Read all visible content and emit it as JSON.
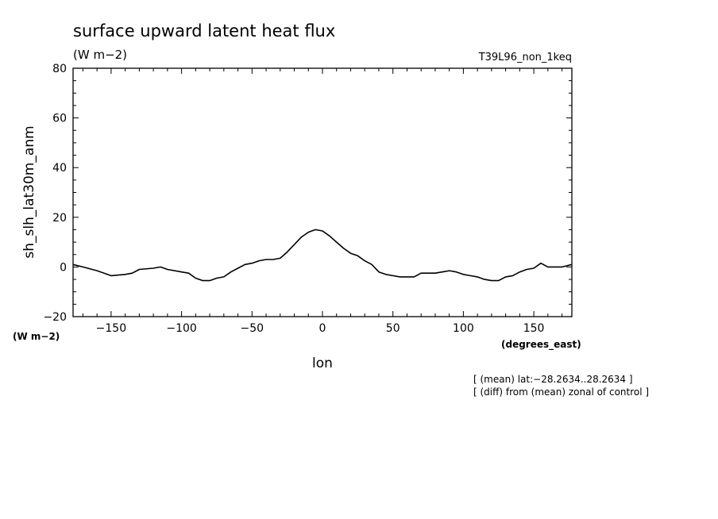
{
  "chart_data": {
    "type": "line",
    "title": "surface upward latent heat flux",
    "title_units": "(W m−2)",
    "experiment": "T39L96_non_1keq",
    "ylabel": "sh_slh_lat30m_anm",
    "y_units": "(W m−2)",
    "xlabel": "lon",
    "x_units": "(degrees_east)",
    "xlim": [
      -177,
      177
    ],
    "ylim": [
      -20,
      80
    ],
    "x_ticks": [
      -150,
      -100,
      -50,
      0,
      50,
      100,
      150
    ],
    "x_tick_labels": [
      "−150",
      "−100",
      "−50",
      "0",
      "50",
      "100",
      "150"
    ],
    "y_ticks": [
      -20,
      0,
      20,
      40,
      60,
      80
    ],
    "y_tick_labels": [
      "−20",
      "0",
      "20",
      "40",
      "60",
      "80"
    ],
    "notes": [
      "[ (mean) lat:−28.2634..28.2634 ]",
      "[ (diff) from (mean) zonal of control ]"
    ],
    "series": [
      {
        "x": [
          -177,
          -170,
          -160,
          -150,
          -140,
          -135,
          -130,
          -120,
          -115,
          -110,
          -100,
          -95,
          -90,
          -85,
          -80,
          -75,
          -70,
          -65,
          -60,
          -55,
          -50,
          -45,
          -40,
          -35,
          -30,
          -25,
          -20,
          -15,
          -10,
          -5,
          0,
          5,
          10,
          15,
          20,
          25,
          30,
          35,
          40,
          45,
          50,
          55,
          60,
          65,
          70,
          75,
          80,
          85,
          90,
          95,
          100,
          105,
          110,
          115,
          120,
          125,
          130,
          135,
          140,
          145,
          150,
          155,
          160,
          165,
          170,
          177
        ],
        "y": [
          1,
          0,
          -1.5,
          -3.5,
          -3,
          -2.5,
          -1,
          -0.5,
          0,
          -1,
          -2,
          -2.5,
          -4.5,
          -5.5,
          -5.5,
          -4.5,
          -4,
          -2,
          -0.5,
          1,
          1.5,
          2.5,
          3,
          3,
          3.5,
          6,
          9,
          12,
          14,
          15,
          14.5,
          12.5,
          10,
          7.5,
          5.5,
          4.5,
          2.5,
          1,
          -2,
          -3,
          -3.5,
          -4,
          -4,
          -4,
          -2.5,
          -2.5,
          -2.5,
          -2,
          -1.5,
          -2,
          -3,
          -3.5,
          -4,
          -5,
          -5.5,
          -5.5,
          -4,
          -3.5,
          -2,
          -1,
          -0.5,
          1.5,
          0,
          0,
          0,
          1
        ]
      }
    ]
  }
}
